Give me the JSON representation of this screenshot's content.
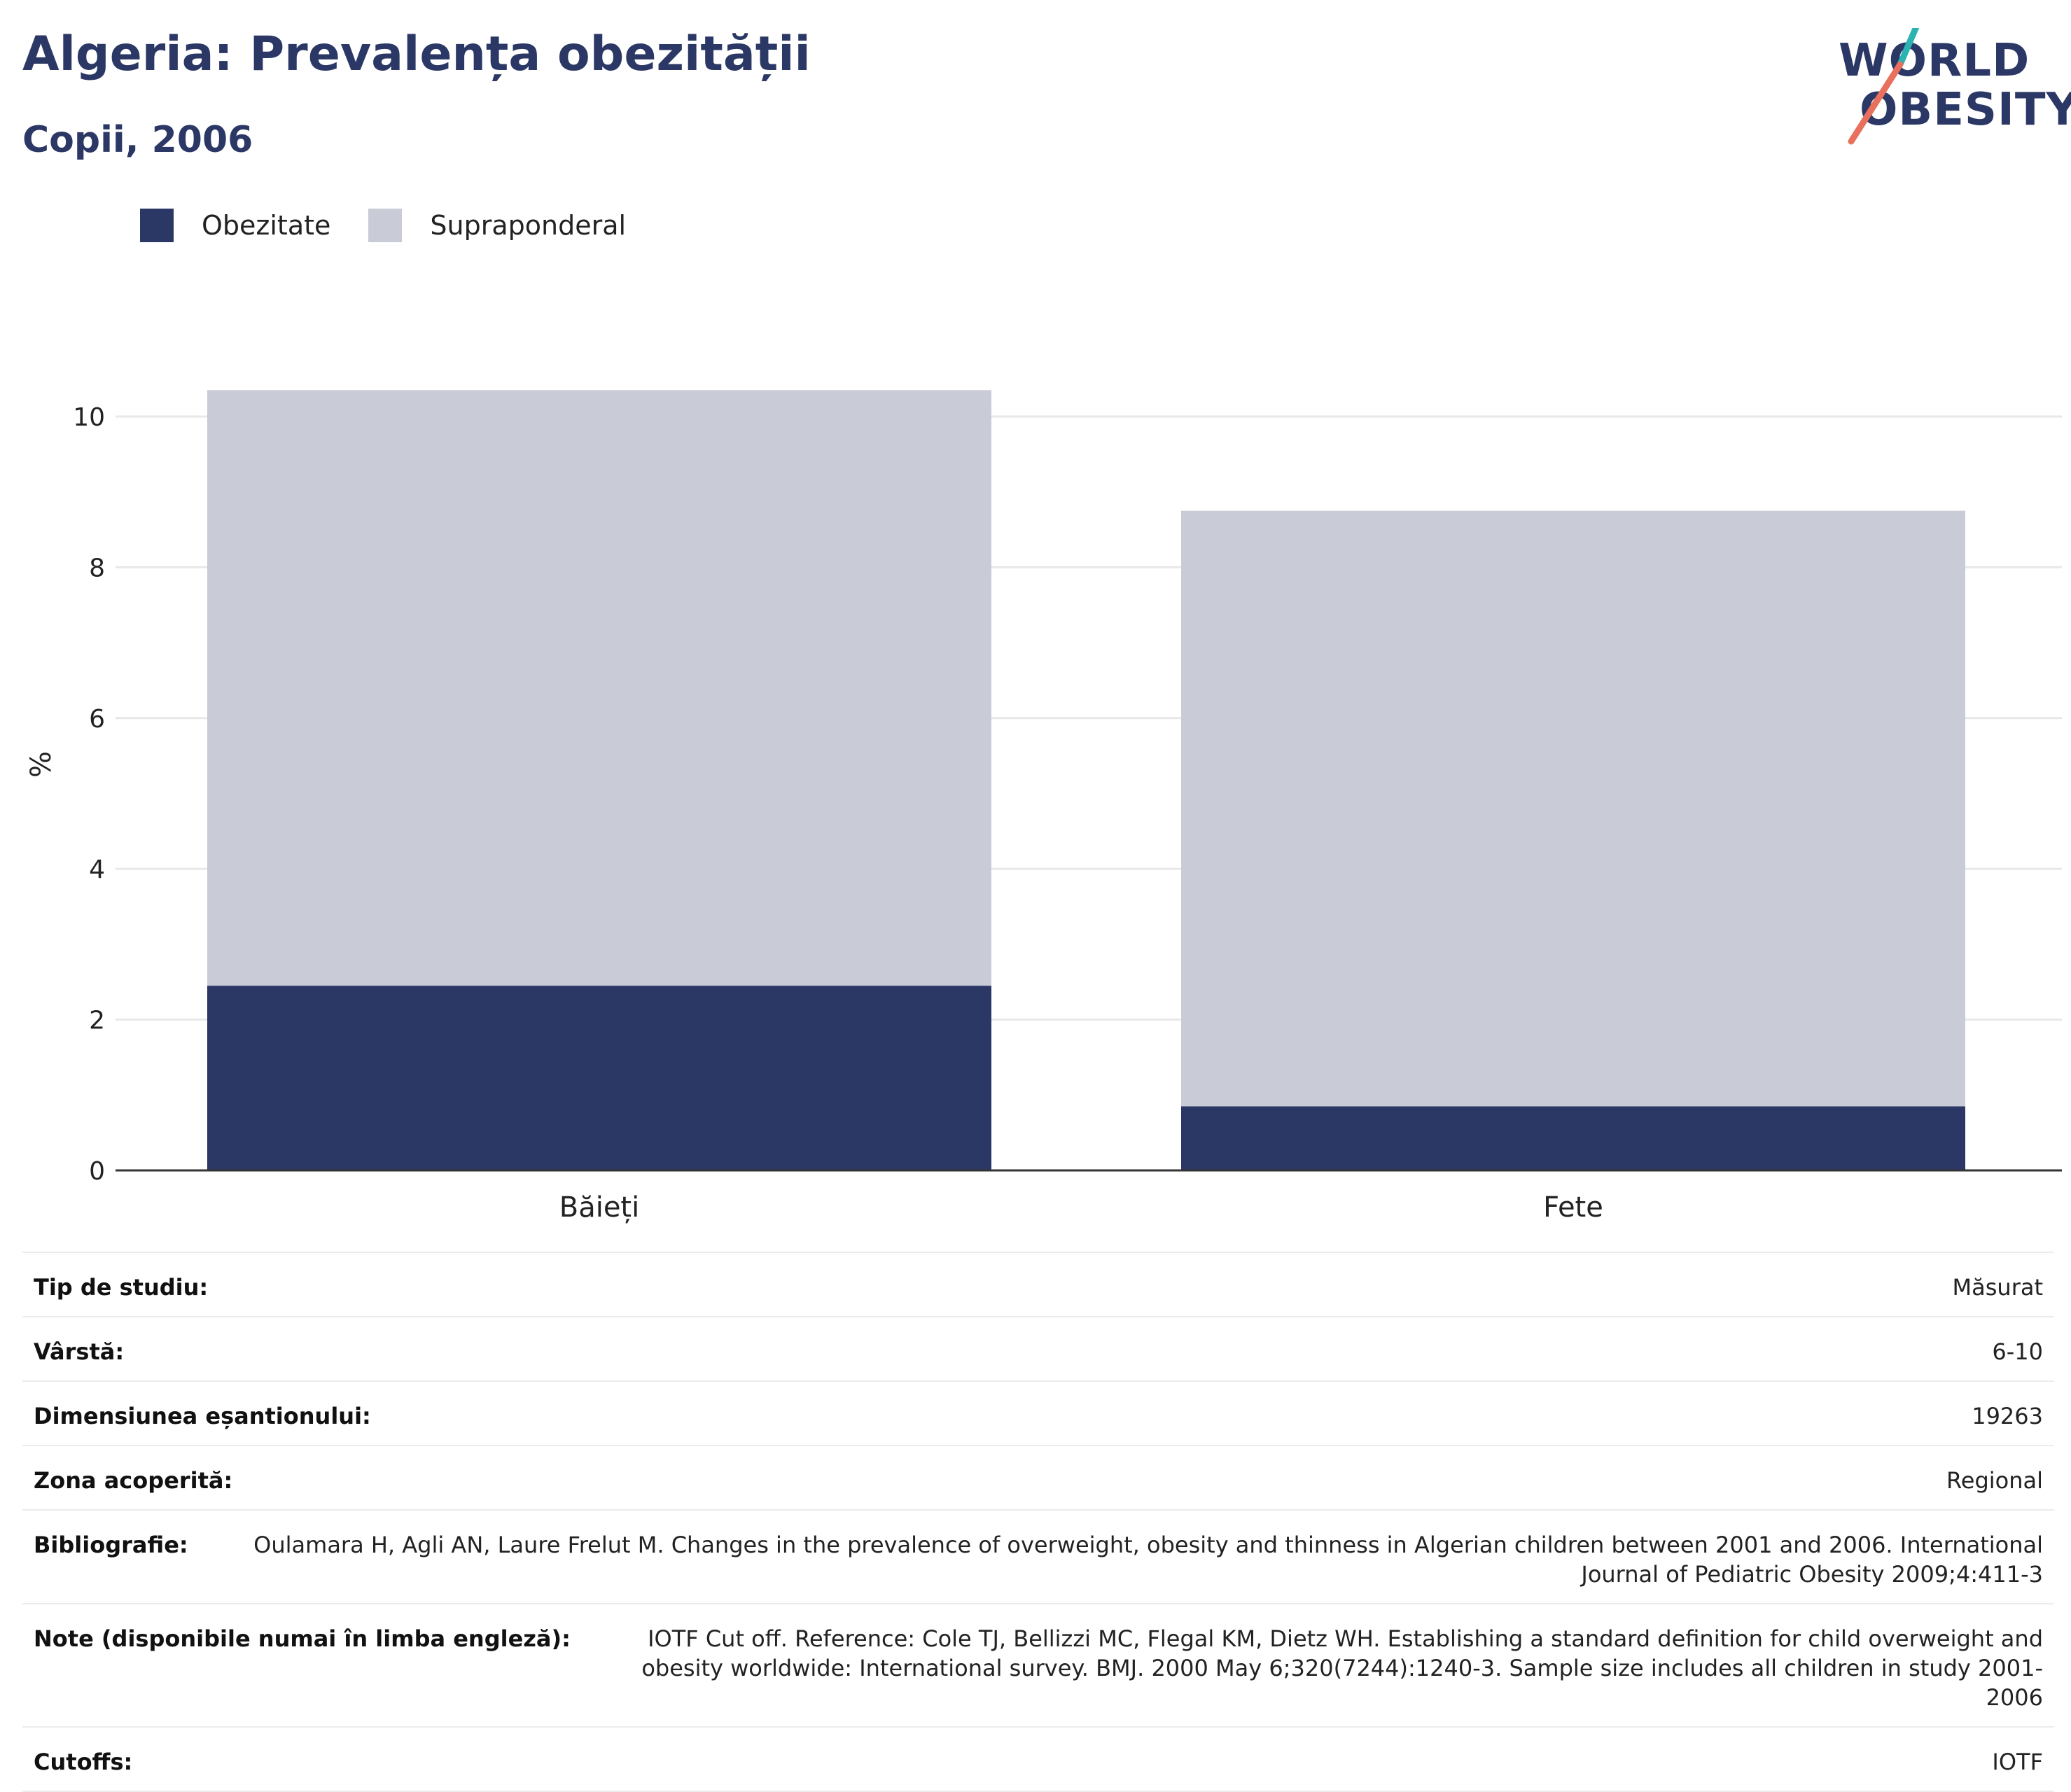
{
  "header": {
    "title": "Algeria: Prevalența obezității",
    "subtitle": "Copii, 2006"
  },
  "logo": {
    "line1": "WORLD",
    "line2": "OBESITY",
    "accent_teal": "#2ab3b1",
    "accent_red": "#e8705d"
  },
  "legend": [
    {
      "label": "Obezitate",
      "color": "#2b3765"
    },
    {
      "label": "Supraponderal",
      "color": "#c9cbd7"
    }
  ],
  "chart_data": {
    "type": "bar",
    "stacked": true,
    "categories": [
      "Băieți",
      "Fete"
    ],
    "series": [
      {
        "name": "Obezitate",
        "values": [
          2.45,
          0.85
        ],
        "color": "#2b3765"
      },
      {
        "name": "Supraponderal",
        "values": [
          7.9,
          7.9
        ],
        "color": "#c9cbd7"
      }
    ],
    "ylabel": "%",
    "ylim": [
      0,
      10.4
    ],
    "yticks": [
      0,
      2,
      4,
      6,
      8,
      10
    ],
    "grid": true,
    "legend_position": "top-left"
  },
  "meta": [
    {
      "key": "Tip de studiu:",
      "value": "Măsurat"
    },
    {
      "key": "Vârstă:",
      "value": "6-10"
    },
    {
      "key": "Dimensiunea eșantionului:",
      "value": "19263"
    },
    {
      "key": "Zona acoperită:",
      "value": "Regional"
    },
    {
      "key": "Bibliografie:",
      "value": "Oulamara H, Agli AN, Laure Frelut M. Changes in the prevalence of overweight, obesity and thinness in Algerian children between 2001 and 2006. International Journal of Pediatric Obesity 2009;4:411-3"
    },
    {
      "key": "Note (disponibile numai în limba engleză):",
      "value": "IOTF Cut off. Reference: Cole TJ, Bellizzi MC, Flegal KM, Dietz WH. Establishing a standard definition for child overweight and obesity worldwide: International survey. BMJ. 2000 May 6;320(7244):1240-3. Sample size includes all children in study 2001-2006"
    },
    {
      "key": "Cutoffs:",
      "value": "IOTF"
    }
  ]
}
